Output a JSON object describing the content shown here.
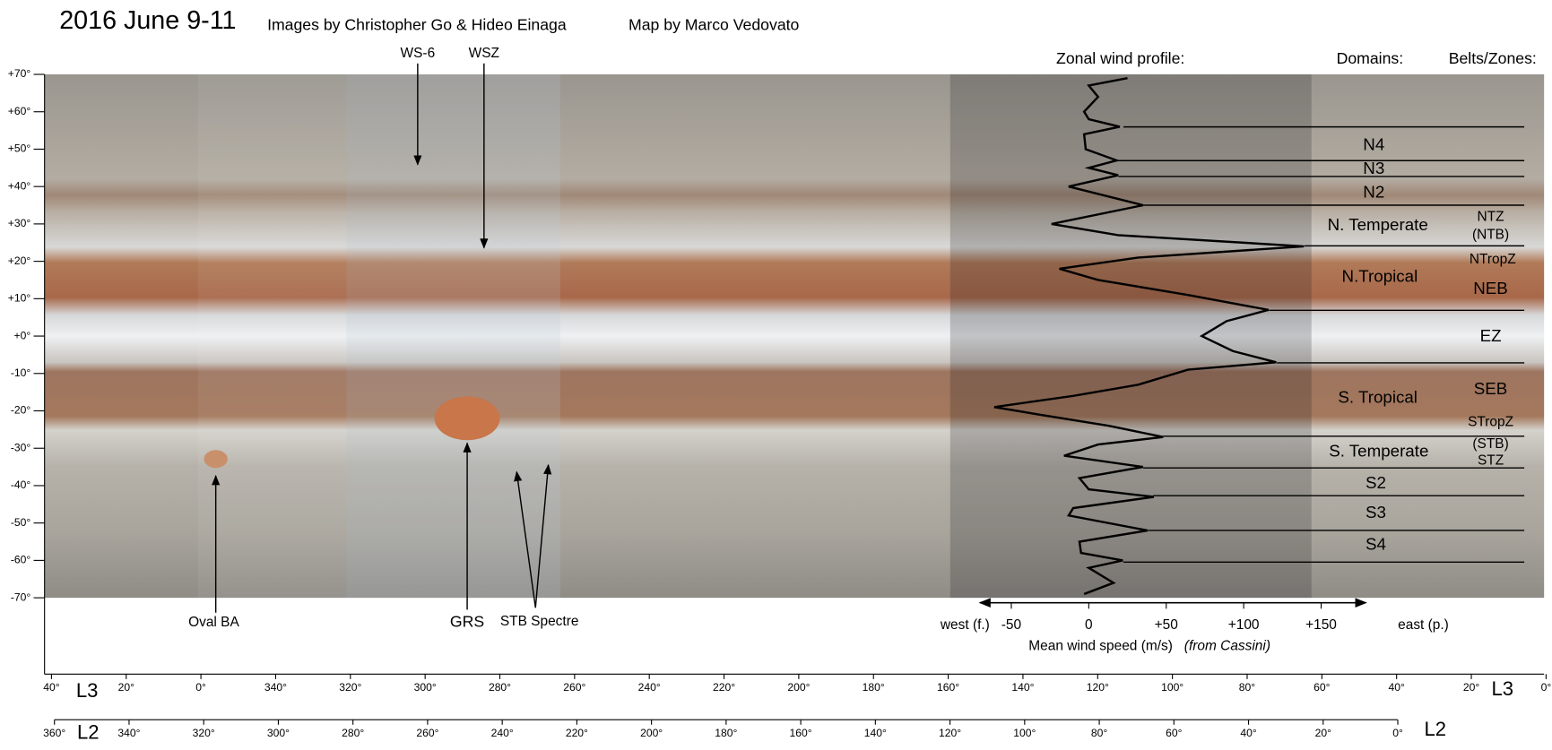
{
  "header": {
    "title": "2016 June 9-11",
    "credit_images": "Images by Christopher Go & Hideo Einaga",
    "credit_map": "Map by Marco Vedovato"
  },
  "annotations": {
    "ws6": "WS-6",
    "wsz": "WSZ",
    "oval_ba": "Oval BA",
    "grs": "GRS",
    "stb_spectre": "STB Spectre"
  },
  "columns": {
    "wind_profile": "Zonal wind profile:",
    "domains": "Domains:",
    "belts_zones": "Belts/Zones:"
  },
  "domains": [
    "N4",
    "N3",
    "N2",
    "N. Temperate",
    "N.Tropical",
    "S. Tropical",
    "S. Temperate",
    "S2",
    "S3",
    "S4"
  ],
  "belts_zones": [
    "NTZ",
    "(NTB)",
    "NTropZ",
    "NEB",
    "EZ",
    "SEB",
    "STropZ",
    "(STB)",
    "STZ"
  ],
  "latitude_ticks": [
    {
      "value": 70,
      "label": "+70°"
    },
    {
      "value": 60,
      "label": "+60°"
    },
    {
      "value": 50,
      "label": "+50°"
    },
    {
      "value": 40,
      "label": "+40°"
    },
    {
      "value": 30,
      "label": "+30°"
    },
    {
      "value": 20,
      "label": "+20°"
    },
    {
      "value": 10,
      "label": "+10°"
    },
    {
      "value": 0,
      "label": "+0°"
    },
    {
      "value": -10,
      "label": "-10°"
    },
    {
      "value": -20,
      "label": "-20°"
    },
    {
      "value": -30,
      "label": "-30°"
    },
    {
      "value": -40,
      "label": "-40°"
    },
    {
      "value": -50,
      "label": "-50°"
    },
    {
      "value": -60,
      "label": "-60°"
    },
    {
      "value": -70,
      "label": "-70°"
    }
  ],
  "wind_axis": {
    "west": "west (f.)",
    "east": "east (p.)",
    "title": "Mean wind speed (m/s)",
    "source": "(from Cassini)",
    "ticks": [
      -50,
      0,
      {
        "value": 50,
        "label": "+50"
      },
      {
        "value": 100,
        "label": "+100"
      },
      {
        "value": 150,
        "label": "+150"
      }
    ]
  },
  "wind_profile": {
    "latitude": [
      69,
      67,
      64,
      60,
      58,
      56,
      54,
      50,
      47,
      45,
      43,
      40,
      35,
      30,
      27,
      24,
      21,
      18,
      15,
      11,
      7,
      4,
      0,
      -4,
      -7,
      -9,
      -13,
      -16,
      -19,
      -21,
      -24,
      -27,
      -29,
      -32,
      -35,
      -38,
      -41,
      -43,
      -46,
      -48,
      -52,
      -55,
      -58,
      -60,
      -62,
      -66,
      -69
    ],
    "speed": [
      25,
      0,
      6,
      -3,
      0,
      20,
      -3,
      -2,
      18,
      0,
      19,
      -13,
      35,
      -24,
      19,
      139,
      32,
      -19,
      6,
      64,
      116,
      89,
      73,
      93,
      121,
      64,
      32,
      -10,
      -61,
      -32,
      13,
      48,
      6,
      -16,
      35,
      -6,
      0,
      42,
      -10,
      -13,
      38,
      -6,
      -5,
      22,
      0,
      16,
      -3
    ]
  },
  "system_iii": {
    "name": "L3",
    "labels": [
      "40°",
      "20°",
      "0°",
      "340°",
      "320°",
      "300°",
      "280°",
      "260°",
      "240°",
      "220°",
      "200°",
      "180°",
      "160°",
      "140°",
      "120°",
      "100°",
      "80°",
      "60°",
      "40°",
      "20°",
      "0°"
    ]
  },
  "system_ii": {
    "name": "L2",
    "labels": [
      "360°",
      "340°",
      "320°",
      "300°",
      "280°",
      "260°",
      "240°",
      "220°",
      "200°",
      "180°",
      "160°",
      "140°",
      "120°",
      "100°",
      "80°",
      "60°",
      "40°",
      "20°",
      "0°"
    ]
  }
}
